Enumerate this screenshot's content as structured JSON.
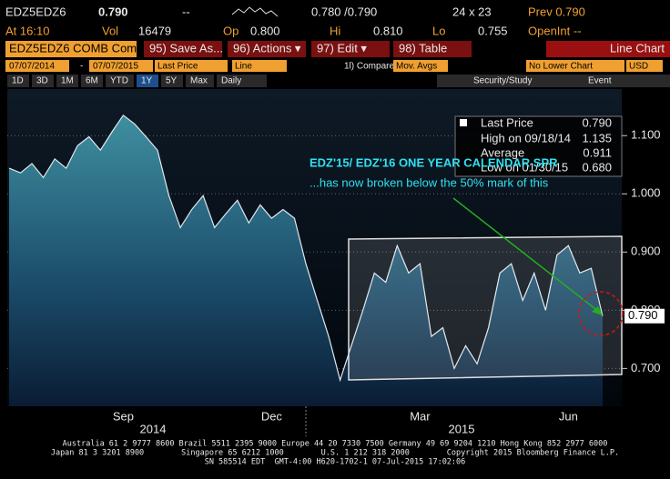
{
  "header": {
    "ticker": "EDZ5EDZ6",
    "price": "0.790",
    "change": "--",
    "bid_ask": "0.780 /0.790",
    "size": "24 x 23",
    "prev": "Prev 0.790",
    "time": "At 16:10",
    "vol_label": "Vol",
    "vol": "16479",
    "op_label": "Op",
    "op": "0.800",
    "hi_label": "Hi",
    "hi": "0.810",
    "lo_label": "Lo",
    "lo": "0.755",
    "openint": "OpenInt --"
  },
  "toolbar": {
    "security": "EDZ5EDZ6 COMB Com",
    "buttons": [
      "95) Save As...",
      "96) Actions ▾",
      "97) Edit ▾",
      "98) Table"
    ],
    "chart_type": "Line Chart"
  },
  "controls": {
    "start": "07/07/2014",
    "dash": "-",
    "end": "07/07/2015",
    "field": "Last Price",
    "style": "Line",
    "compare": "1l) Compare",
    "mov_avgs": "Mov. Avgs",
    "lower": "No Lower Chart",
    "currency": "USD"
  },
  "periods": [
    "1D",
    "3D",
    "1M",
    "6M",
    "YTD",
    "1Y",
    "5Y",
    "Max",
    "Daily"
  ],
  "tools": [
    "Security/Study",
    "Event"
  ],
  "chart_data": {
    "type": "area",
    "categories": [
      null,
      null,
      null,
      null,
      null,
      null,
      null,
      null,
      null,
      null,
      "Sep",
      null,
      null,
      null,
      null,
      null,
      null,
      null,
      null,
      null,
      null,
      null,
      null,
      "Dec",
      null,
      null,
      null,
      null,
      null,
      null,
      null,
      null,
      null,
      null,
      null,
      null,
      "Mar",
      null,
      null,
      null,
      null,
      null,
      null,
      null,
      null,
      null,
      null,
      null,
      null,
      "Jun",
      null,
      null,
      null
    ],
    "x_group_labels": [
      "2014",
      "2015"
    ],
    "series": [
      {
        "name": "Last Price",
        "color": "#3f8fa0",
        "values": [
          1.044,
          1.036,
          1.052,
          1.028,
          1.06,
          1.044,
          1.083,
          1.098,
          1.075,
          1.106,
          1.135,
          1.12,
          1.098,
          1.075,
          0.997,
          0.942,
          0.973,
          0.997,
          0.942,
          0.966,
          0.989,
          0.95,
          0.981,
          0.958,
          0.973,
          0.958,
          0.88,
          0.817,
          0.755,
          0.68,
          0.74,
          0.8,
          0.864,
          0.848,
          0.911,
          0.864,
          0.88,
          0.755,
          0.77,
          0.7,
          0.739,
          0.708,
          0.77,
          0.864,
          0.88,
          0.817,
          0.864,
          0.8,
          0.895,
          0.911,
          0.864,
          0.872,
          0.79
        ]
      }
    ],
    "ylim": [
      0.635,
      1.18
    ],
    "yticks": [
      {
        "value": 0.7,
        "label": "0.700"
      },
      {
        "value": 0.8,
        "label": "0.800"
      },
      {
        "value": 0.9,
        "label": "0.900"
      },
      {
        "value": 1.0,
        "label": "1.000"
      },
      {
        "value": 1.1,
        "label": "1.100"
      }
    ],
    "last_value": {
      "value": 0.79,
      "label": "0.790"
    },
    "legend_stats": [
      {
        "label": "High on 09/18/14",
        "value": "1.135"
      },
      {
        "label": "Average",
        "value": "0.911"
      },
      {
        "label": "Low on 01/30/15",
        "value": "0.680"
      }
    ],
    "annotations": [
      "EDZ'15/ EDZ'16 ONE YEAR CALENDAR SPR",
      "...has now broken below the 50% mark of this"
    ]
  },
  "footer": [
    "Australia 61 2 9777 8600 Brazil 5511 2395 9000 Europe 44 20 7330 7500 Germany 49 69 9204 1210 Hong Kong 852 2977 6000",
    "Japan 81 3 3201 8900        Singapore 65 6212 1000        U.S. 1 212 318 2000        Copyright 2015 Bloomberg Finance L.P.",
    "SN 585514 EDT  GMT-4:00 H620-1702-1 07-Jul-2015 17:02:06"
  ]
}
